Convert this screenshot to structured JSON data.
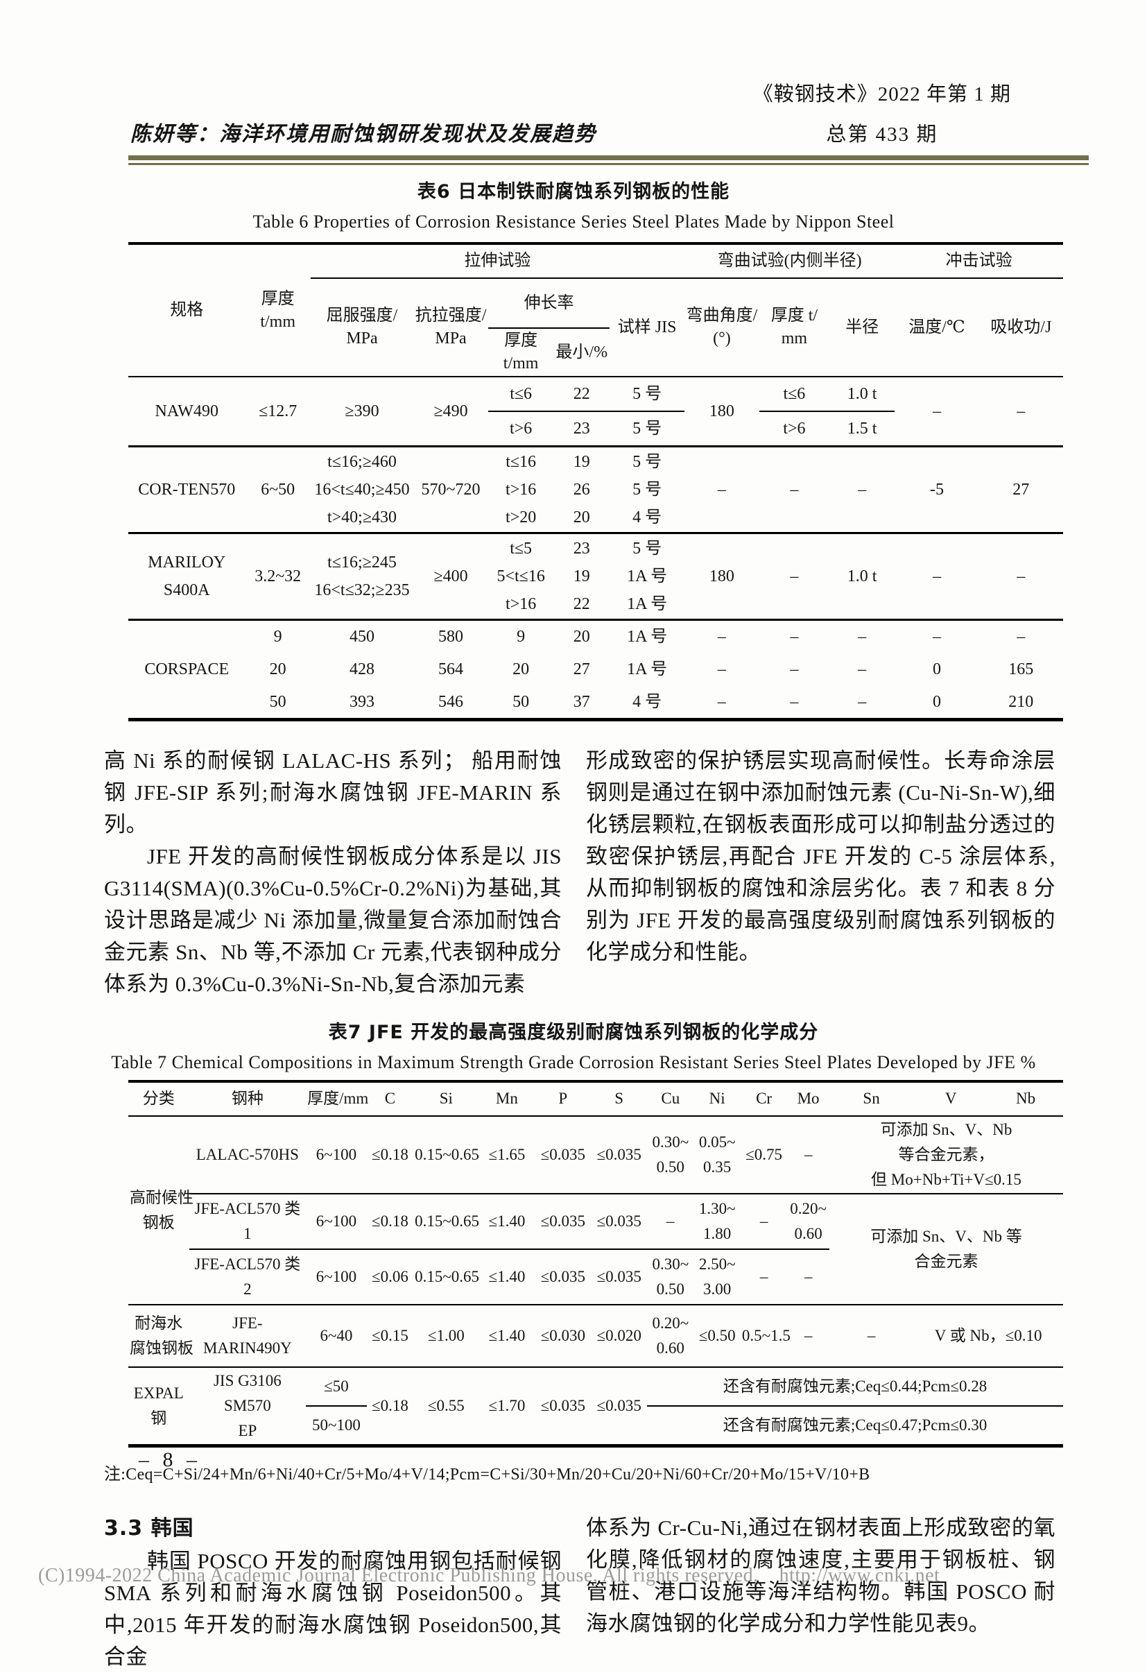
{
  "header": {
    "author_line": "陈妍等：海洋环境用耐蚀钢研发现状及发展趋势",
    "journal_line1": "《鞍钢技术》2022 年第 1 期",
    "journal_line2": "总第 433 期"
  },
  "table6": {
    "caption_zh": "表6  日本制铁耐腐蚀系列钢板的性能",
    "caption_en": "Table 6  Properties of Corrosion Resistance Series Steel Plates Made by Nippon Steel",
    "tableClass": "t6",
    "colWidths": [
      12.5,
      7,
      11,
      8,
      7,
      6,
      8,
      8,
      7.5,
      7,
      9,
      9
    ],
    "rows": [
      {
        "h": 50,
        "cells": [
          {
            "t": "规格",
            "rs": 3,
            "c": "hd hbb"
          },
          {
            "t": "厚度 t/mm",
            "rs": 3,
            "c": "hd hbb"
          },
          {
            "t": "拉伸试验",
            "cs": 5,
            "c": "hd hb"
          },
          {
            "t": "弯曲试验(内侧半径)",
            "cs": 3,
            "c": "hd hb"
          },
          {
            "t": "冲击试验",
            "cs": 2,
            "c": "hd hb"
          }
        ]
      },
      {
        "h": 72,
        "cells": [
          {
            "t": "屈服强度/\nMPa",
            "rs": 2,
            "c": "hd hbb"
          },
          {
            "t": "抗拉强度/\nMPa",
            "rs": 2,
            "c": "hd hbb"
          },
          {
            "t": "伸长率",
            "cs": 2,
            "c": "hd hb"
          },
          {
            "t": "试样 JIS",
            "rs": 2,
            "c": "hd hbb"
          },
          {
            "t": "弯曲角度/\n(°)",
            "rs": 2,
            "c": "hd hbb"
          },
          {
            "t": "厚度 t/\nmm",
            "rs": 2,
            "c": "hd hbb"
          },
          {
            "t": "半径",
            "rs": 2,
            "c": "hd hbb"
          },
          {
            "t": "温度/℃",
            "rs": 2,
            "c": "hd hbb"
          },
          {
            "t": "吸收功/J",
            "rs": 2,
            "c": "hd hbb"
          }
        ]
      },
      {
        "h": 42,
        "cells": [
          {
            "t": "厚度 t/mm",
            "c": "hd hbb"
          },
          {
            "t": "最小/%",
            "c": "hd hbb"
          }
        ]
      },
      {
        "h": 50,
        "cells": [
          {
            "t": "NAW490",
            "rs": 2,
            "c": "rb"
          },
          {
            "t": "≤12.7",
            "rs": 2,
            "c": "rb"
          },
          {
            "t": "≥390",
            "rs": 2,
            "c": "rb"
          },
          {
            "t": "≥490",
            "rs": 2,
            "c": "rb"
          },
          {
            "t": "t≤6",
            "c": "bb"
          },
          {
            "t": "22",
            "c": "bb"
          },
          {
            "t": "5 号",
            "c": "bb"
          },
          {
            "t": "180",
            "rs": 2,
            "c": "rb"
          },
          {
            "t": "t≤6",
            "c": "bb"
          },
          {
            "t": "1.0 t",
            "c": "bb"
          },
          {
            "t": "–",
            "rs": 2,
            "c": "rb"
          },
          {
            "t": "–",
            "rs": 2,
            "c": "rb"
          }
        ]
      },
      {
        "h": 50,
        "cells": [
          {
            "t": "t>6",
            "c": "rb"
          },
          {
            "t": "23",
            "c": "rb"
          },
          {
            "t": "5 号",
            "c": "rb"
          },
          {
            "t": "t>6",
            "c": "rb"
          },
          {
            "t": "1.5 t",
            "c": "rb"
          }
        ]
      },
      {
        "h": 125,
        "cells": [
          {
            "t": "COR-TEN570",
            "c": "rb"
          },
          {
            "t": "6~50",
            "c": "rb"
          },
          {
            "t": "t≤16;≥460\n16<t≤40;≥450\nt>40;≥430",
            "c": "rb"
          },
          {
            "t": "570~720",
            "c": "rb"
          },
          {
            "t": "t≤16\nt>16\nt>20",
            "c": "rb"
          },
          {
            "t": "19\n26\n20",
            "c": "rb"
          },
          {
            "t": "5 号\n5 号\n4 号",
            "c": "rb"
          },
          {
            "t": "–",
            "c": "rb"
          },
          {
            "t": "–",
            "c": "rb"
          },
          {
            "t": "–",
            "c": "rb"
          },
          {
            "t": "-5",
            "c": "rb"
          },
          {
            "t": "27",
            "c": "rb"
          }
        ]
      },
      {
        "h": 122,
        "cells": [
          {
            "t": "MARILOY\nS400A",
            "c": "rb"
          },
          {
            "t": "3.2~32",
            "c": "rb"
          },
          {
            "t": "t≤16;≥245\n16<t≤32;≥235",
            "c": "rb"
          },
          {
            "t": "≥400",
            "c": "rb"
          },
          {
            "t": "t≤5\n5<t≤16\nt>16",
            "c": "rb"
          },
          {
            "t": "23\n19\n22",
            "c": "rb"
          },
          {
            "t": "5 号\n1A 号\n1A 号",
            "c": "rb"
          },
          {
            "t": "180",
            "c": "rb"
          },
          {
            "t": "–",
            "c": "rb"
          },
          {
            "t": "1.0 t",
            "c": "rb"
          },
          {
            "t": "–",
            "c": "rb"
          },
          {
            "t": "–",
            "c": "rb"
          }
        ]
      },
      {
        "h": 48,
        "cells": [
          {
            "t": "CORSPACE",
            "rs": 3
          },
          {
            "t": "9"
          },
          {
            "t": "450"
          },
          {
            "t": "580"
          },
          {
            "t": "9"
          },
          {
            "t": "20"
          },
          {
            "t": "1A 号"
          },
          {
            "t": "–"
          },
          {
            "t": "–"
          },
          {
            "t": "–"
          },
          {
            "t": "–"
          },
          {
            "t": "–"
          }
        ]
      },
      {
        "h": 48,
        "cells": [
          {
            "t": "20"
          },
          {
            "t": "428"
          },
          {
            "t": "564"
          },
          {
            "t": "20"
          },
          {
            "t": "27"
          },
          {
            "t": "1A 号"
          },
          {
            "t": "–"
          },
          {
            "t": "–"
          },
          {
            "t": "–"
          },
          {
            "t": "0"
          },
          {
            "t": "165"
          }
        ]
      },
      {
        "h": 48,
        "cells": [
          {
            "t": "50"
          },
          {
            "t": "393"
          },
          {
            "t": "546"
          },
          {
            "t": "50"
          },
          {
            "t": "37"
          },
          {
            "t": "4 号"
          },
          {
            "t": "–"
          },
          {
            "t": "–"
          },
          {
            "t": "–"
          },
          {
            "t": "0"
          },
          {
            "t": "210"
          }
        ]
      }
    ]
  },
  "mid_text": {
    "left_p1": "高 Ni 系的耐候钢 LALAC-HS 系列； 船用耐蚀钢 JFE-SIP 系列;耐海水腐蚀钢 JFE-MARIN 系列。",
    "left_p2": "JFE 开发的高耐候性钢板成分体系是以 JIS G3114(SMA)(0.3%Cu-0.5%Cr-0.2%Ni)为基础,其设计思路是减少 Ni 添加量,微量复合添加耐蚀合金元素 Sn、Nb 等,不添加 Cr 元素,代表钢种成分体系为 0.3%Cu-0.3%Ni-Sn-Nb,复合添加元素",
    "right_p1": "形成致密的保护锈层实现高耐候性。长寿命涂层钢则是通过在钢中添加耐蚀元素 (Cu-Ni-Sn-W),细化锈层颗粒,在钢板表面形成可以抑制盐分透过的致密保护锈层,再配合 JFE 开发的 C-5 涂层体系,从而抑制钢板的腐蚀和涂层劣化。表 7 和表 8 分别为 JFE 开发的最高强度级别耐腐蚀系列钢板的化学成分和性能。"
  },
  "table7": {
    "caption_zh": "表7  JFE 开发的最高强度级别耐腐蚀系列钢板的化学成分",
    "caption_en": "Table 7  Chemical Compositions in Maximum Strength Grade Corrosion Resistant Series Steel Plates Developed by JFE   %",
    "tableClass": "t7",
    "colWidths": [
      6.5,
      12.5,
      6.5,
      5,
      7,
      6,
      6,
      6,
      5,
      5,
      5,
      4.5,
      9,
      8,
      8
    ],
    "rows": [
      {
        "h": 50,
        "cells": [
          {
            "t": "分类",
            "c": "hd hbb"
          },
          {
            "t": "钢种",
            "c": "hd hbb"
          },
          {
            "t": "厚度/mm",
            "c": "hd hbb"
          },
          {
            "t": "C",
            "c": "hd hbb"
          },
          {
            "t": "Si",
            "c": "hd hbb"
          },
          {
            "t": "Mn",
            "c": "hd hbb"
          },
          {
            "t": "P",
            "c": "hd hbb"
          },
          {
            "t": "S",
            "c": "hd hbb"
          },
          {
            "t": "Cu",
            "c": "hd hbb"
          },
          {
            "t": "Ni",
            "c": "hd hbb"
          },
          {
            "t": "Cr",
            "c": "hd hbb"
          },
          {
            "t": "Mo",
            "c": "hd hbb"
          },
          {
            "t": "Sn",
            "c": "hd hbb"
          },
          {
            "t": "V",
            "c": "hd hbb"
          },
          {
            "t": "Nb",
            "c": "hd hbb"
          }
        ]
      },
      {
        "h": 82,
        "cells": [
          {
            "t": "高耐候性\n钢板",
            "rs": 3,
            "c": "bb"
          },
          {
            "t": "LALAC-570HS",
            "c": "bb"
          },
          {
            "t": "6~100",
            "c": "bb"
          },
          {
            "t": "≤0.18",
            "c": "bb"
          },
          {
            "t": "0.15~0.65",
            "c": "bb"
          },
          {
            "t": "≤1.65",
            "c": "bb"
          },
          {
            "t": "≤0.035",
            "c": "bb"
          },
          {
            "t": "≤0.035",
            "c": "bb"
          },
          {
            "t": "0.30~\n0.50",
            "c": "bb"
          },
          {
            "t": "0.05~\n0.35",
            "c": "bb"
          },
          {
            "t": "≤0.75",
            "c": "bb"
          },
          {
            "t": "–",
            "c": "bb"
          },
          {
            "t": "可添加 Sn、V、Nb 等合金元素，\n但 Mo+Nb+Ti+V≤0.15",
            "cs": 3,
            "c": "bb sm"
          }
        ]
      },
      {
        "h": 80,
        "cells": [
          {
            "t": "JFE-ACL570 类 1",
            "c": "bb"
          },
          {
            "t": "6~100",
            "c": "bb"
          },
          {
            "t": "≤0.18",
            "c": "bb"
          },
          {
            "t": "0.15~0.65",
            "c": "bb"
          },
          {
            "t": "≤1.40",
            "c": "bb"
          },
          {
            "t": "≤0.035",
            "c": "bb"
          },
          {
            "t": "≤0.035",
            "c": "bb"
          },
          {
            "t": "–",
            "c": "bb"
          },
          {
            "t": "1.30~\n1.80",
            "c": "bb"
          },
          {
            "t": "–",
            "c": "bb"
          },
          {
            "t": "0.20~\n0.60",
            "c": "bb"
          },
          {
            "t": "可添加 Sn、V、Nb 等\n合金元素",
            "rs": 2,
            "cs": 3,
            "c": "bb sm"
          }
        ]
      },
      {
        "h": 80,
        "cells": [
          {
            "t": "JFE-ACL570 类 2",
            "c": "bb"
          },
          {
            "t": "6~100",
            "c": "bb"
          },
          {
            "t": "≤0.06",
            "c": "bb"
          },
          {
            "t": "0.15~0.65",
            "c": "bb"
          },
          {
            "t": "≤1.40",
            "c": "bb"
          },
          {
            "t": "≤0.035",
            "c": "bb"
          },
          {
            "t": "≤0.035",
            "c": "bb"
          },
          {
            "t": "0.30~\n0.50",
            "c": "bb"
          },
          {
            "t": "2.50~\n3.00",
            "c": "bb"
          },
          {
            "t": "–",
            "c": "bb"
          },
          {
            "t": "–",
            "c": "bb"
          }
        ]
      },
      {
        "h": 90,
        "cells": [
          {
            "t": "耐海水\n腐蚀钢板",
            "c": "bb"
          },
          {
            "t": "JFE-MARIN490Y",
            "c": "bb"
          },
          {
            "t": "6~40",
            "c": "bb"
          },
          {
            "t": "≤0.15",
            "c": "bb"
          },
          {
            "t": "≤1.00",
            "c": "bb"
          },
          {
            "t": "≤1.40",
            "c": "bb"
          },
          {
            "t": "≤0.030",
            "c": "bb"
          },
          {
            "t": "≤0.020",
            "c": "bb"
          },
          {
            "t": "0.20~\n0.60",
            "c": "bb"
          },
          {
            "t": "≤0.50",
            "c": "bb"
          },
          {
            "t": "0.5~1.5",
            "c": "bb"
          },
          {
            "t": "–",
            "c": "bb"
          },
          {
            "t": "–",
            "c": "bb"
          },
          {
            "t": "V 或 Nb，≤0.10",
            "cs": 2,
            "c": "bb"
          }
        ]
      },
      {
        "h": 42,
        "cells": [
          {
            "t": "EXPAL\n钢",
            "rs": 2
          },
          {
            "t": "JIS G3106 SM570\nEP",
            "rs": 2
          },
          {
            "t": "≤50",
            "c": "bb"
          },
          {
            "t": "≤0.18",
            "rs": 2
          },
          {
            "t": "≤0.55",
            "rs": 2
          },
          {
            "t": "≤1.70",
            "rs": 2
          },
          {
            "t": "≤0.035",
            "rs": 2
          },
          {
            "t": "≤0.035",
            "rs": 2
          },
          {
            "t": "还含有耐腐蚀元素;Ceq≤0.44;Pcm≤0.28",
            "cs": 7,
            "c": "bb"
          }
        ]
      },
      {
        "h": 42,
        "cells": [
          {
            "t": "50~100"
          },
          {
            "t": "还含有耐腐蚀元素;Ceq≤0.47;Pcm≤0.30",
            "cs": 7
          }
        ]
      }
    ],
    "note": "注:Ceq=C+Si/24+Mn/6+Ni/40+Cr/5+Mo/4+V/14;Pcm=C+Si/30+Mn/20+Cu/20+Ni/60+Cr/20+Mo/15+V/10+B"
  },
  "section33": {
    "heading": "3.3  韩国",
    "left_p": "韩国 POSCO 开发的耐腐蚀用钢包括耐候钢 SMA 系列和耐海水腐蚀钢 Poseidon500。其中,2015 年开发的耐海水腐蚀钢 Poseidon500,其合金",
    "right_p": "体系为 Cr-Cu-Ni,通过在钢材表面上形成致密的氧化膜,降低钢材的腐蚀速度,主要用于钢板桩、钢管桩、港口设施等海洋结构物。韩国 POSCO 耐海水腐蚀钢的化学成分和力学性能见表9。"
  },
  "page_number": "– 8 –",
  "footer": "(C)1994-2022 China Academic Journal Electronic Publishing House. All rights reserved.    http://www.cnki.net"
}
